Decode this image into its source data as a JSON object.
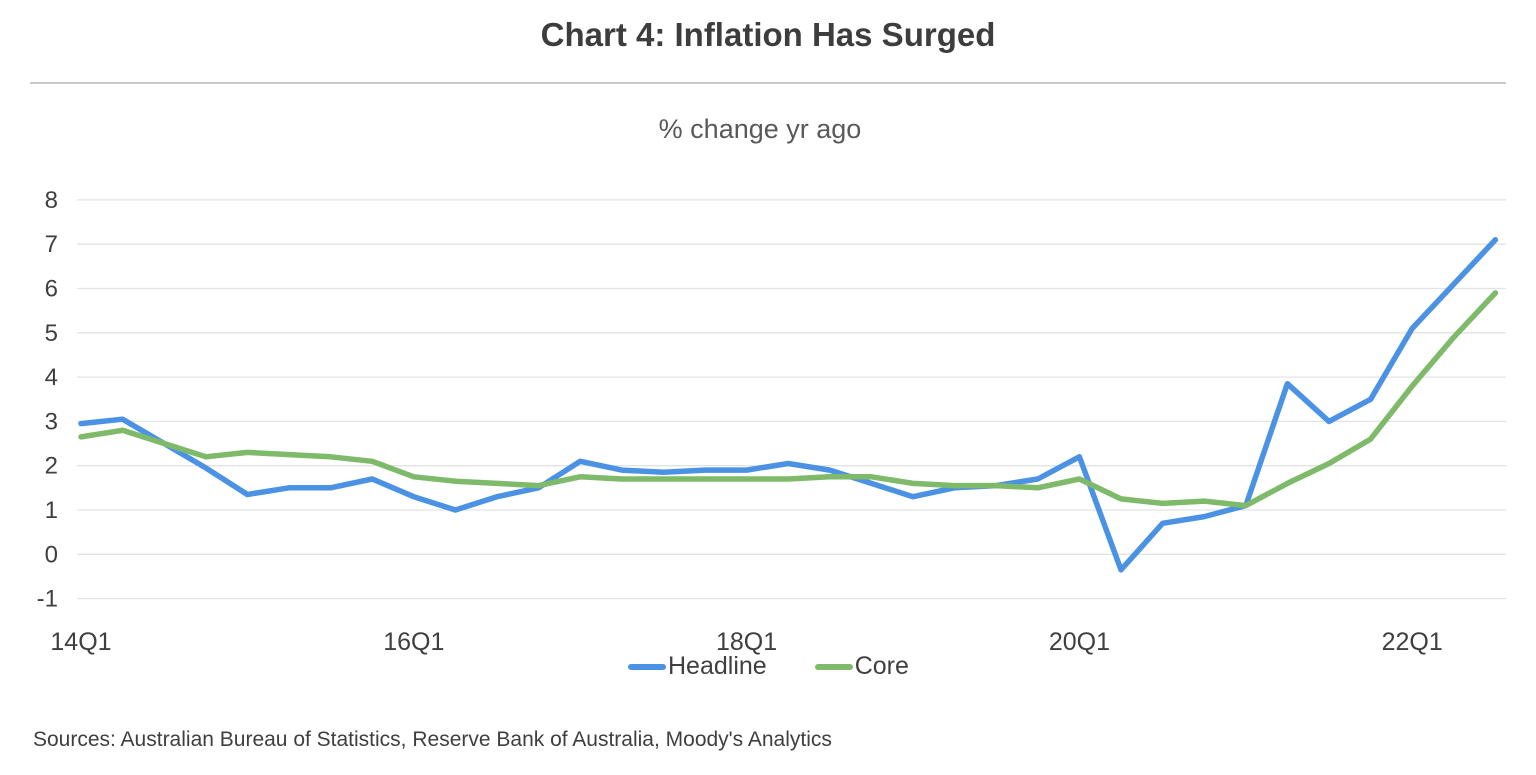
{
  "source_note": "Sources: Australian Bureau of Statistics, Reserve Bank of Australia, Moody's Analytics",
  "colors": {
    "headline_blue": "#4b92e5",
    "core_green": "#7eba69",
    "gridline": "#e3e3e3",
    "divider": "#c9c9c9",
    "title_text": "#3d3d3d",
    "subtitle_text": "#595959",
    "axis_text": "#3f3f3f"
  },
  "legend": {
    "items": [
      {
        "label": "Headline",
        "series": "headline"
      },
      {
        "label": "Core",
        "series": "core"
      }
    ]
  },
  "chart_data": {
    "type": "line",
    "title": "Chart 4: Inflation Has Surged",
    "subtitle": "% change yr ago",
    "categories": [
      "14Q1",
      "14Q2",
      "14Q3",
      "14Q4",
      "15Q1",
      "15Q2",
      "15Q3",
      "15Q4",
      "16Q1",
      "16Q2",
      "16Q3",
      "16Q4",
      "17Q1",
      "17Q2",
      "17Q3",
      "17Q4",
      "18Q1",
      "18Q2",
      "18Q3",
      "18Q4",
      "19Q1",
      "19Q2",
      "19Q3",
      "19Q4",
      "20Q1",
      "20Q2",
      "20Q3",
      "20Q4",
      "21Q1",
      "21Q2",
      "21Q3",
      "21Q4",
      "22Q1",
      "22Q2",
      "22Q3"
    ],
    "x_axis_shown_ticks": [
      {
        "index": 0,
        "label": "14Q1"
      },
      {
        "index": 8,
        "label": "16Q1"
      },
      {
        "index": 16,
        "label": "18Q1"
      },
      {
        "index": 24,
        "label": "20Q1"
      },
      {
        "index": 32,
        "label": "22Q1"
      }
    ],
    "y_ticks": [
      8,
      7,
      6,
      5,
      4,
      3,
      2,
      1,
      0,
      -1
    ],
    "ylim": [
      -1,
      8
    ],
    "grid": "horizontal",
    "legend_position": "bottom",
    "series": [
      {
        "name": "Headline",
        "color": "#4b92e5",
        "values": [
          2.95,
          3.05,
          2.5,
          1.95,
          1.35,
          1.5,
          1.5,
          1.7,
          1.3,
          1.0,
          1.3,
          1.5,
          2.1,
          1.9,
          1.85,
          1.9,
          1.9,
          2.05,
          1.9,
          1.6,
          1.3,
          1.5,
          1.55,
          1.7,
          2.2,
          -0.35,
          0.7,
          0.85,
          1.1,
          3.85,
          3.0,
          3.5,
          5.1,
          6.1,
          7.1
        ]
      },
      {
        "name": "Core",
        "color": "#7eba69",
        "values": [
          2.65,
          2.8,
          2.5,
          2.2,
          2.3,
          2.25,
          2.2,
          2.1,
          1.75,
          1.65,
          1.6,
          1.55,
          1.75,
          1.7,
          1.7,
          1.7,
          1.7,
          1.7,
          1.75,
          1.75,
          1.6,
          1.55,
          1.55,
          1.5,
          1.7,
          1.25,
          1.15,
          1.2,
          1.1,
          1.6,
          2.05,
          2.6,
          3.8,
          4.9,
          5.9
        ]
      }
    ]
  }
}
